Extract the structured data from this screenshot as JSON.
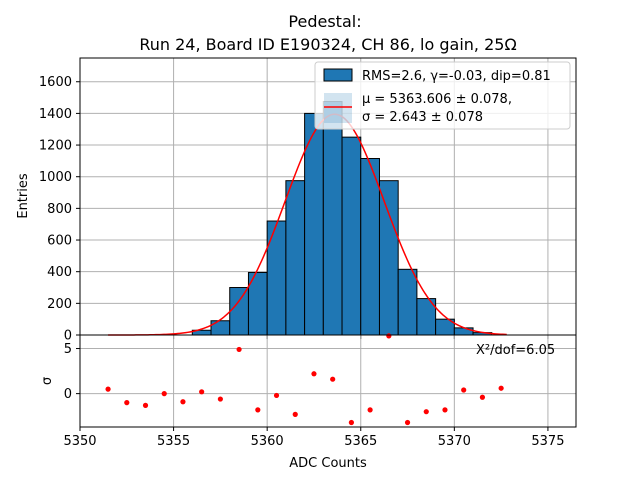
{
  "chart_data": [
    {
      "type": "bar",
      "title": [
        "Pedestal:",
        "Run 24, Board ID E190324, CH 86, lo gain, 25Ω"
      ],
      "xlabel": "ADC Counts",
      "ylabel": "Entries",
      "xlim": [
        5350,
        5376.5
      ],
      "ylim": [
        0,
        1750
      ],
      "grid": true,
      "xticks": [
        5350,
        5355,
        5360,
        5365,
        5370,
        5375
      ],
      "yticks": [
        0,
        200,
        400,
        600,
        800,
        1000,
        1200,
        1400,
        1600
      ],
      "histogram": {
        "bin_width": 1,
        "bin_edges_start": 5351,
        "bin_centers": [
          5351.5,
          5352.5,
          5353.5,
          5354.5,
          5355.5,
          5356.5,
          5357.5,
          5358.5,
          5359.5,
          5360.5,
          5361.5,
          5362.5,
          5363.5,
          5364.5,
          5365.5,
          5366.5,
          5367.5,
          5368.5,
          5369.5,
          5370.5,
          5371.5,
          5372.5
        ],
        "values": [
          0,
          0,
          0,
          0,
          0,
          30,
          90,
          300,
          395,
          720,
          975,
          1400,
          1475,
          1250,
          1115,
          975,
          415,
          230,
          100,
          45,
          15,
          0
        ],
        "color": "#1f77b4",
        "edgecolor": "#000000"
      },
      "fit": {
        "name": "gaussian",
        "color": "#ff0000",
        "mu": 5363.606,
        "sigma": 2.643,
        "amplitude": 1395,
        "x_range": [
          5351.5,
          5372.8
        ]
      },
      "legend": {
        "placement": "upper right",
        "entries": [
          {
            "label": "RMS=2.6, γ=-0.03, dip=0.81",
            "kind": "patch"
          },
          {
            "line1": "μ = 5363.606 ± 0.078,",
            "line2": "σ = 2.643 ± 0.078",
            "kind": "line"
          }
        ]
      }
    },
    {
      "type": "scatter",
      "xlabel": "ADC Counts",
      "ylabel": "σ",
      "xlim": [
        5350,
        5376.5
      ],
      "ylim": [
        -3.7,
        6.5
      ],
      "grid": true,
      "xticks": [
        5350,
        5355,
        5360,
        5365,
        5370,
        5375
      ],
      "yticks": [
        0,
        5
      ],
      "annotation": "X²/dof=6.05",
      "color": "#ff0000",
      "points": [
        {
          "x": 5351.5,
          "y": 0.5
        },
        {
          "x": 5352.5,
          "y": -1.0
        },
        {
          "x": 5353.5,
          "y": -1.3
        },
        {
          "x": 5354.5,
          "y": 0.0
        },
        {
          "x": 5355.5,
          "y": -0.9
        },
        {
          "x": 5356.5,
          "y": 0.2
        },
        {
          "x": 5357.5,
          "y": -0.6
        },
        {
          "x": 5358.5,
          "y": 4.9
        },
        {
          "x": 5359.5,
          "y": -1.8
        },
        {
          "x": 5360.5,
          "y": -0.2
        },
        {
          "x": 5361.5,
          "y": -2.3
        },
        {
          "x": 5362.5,
          "y": 2.2
        },
        {
          "x": 5363.5,
          "y": 1.6
        },
        {
          "x": 5364.5,
          "y": -3.2
        },
        {
          "x": 5365.5,
          "y": -1.8
        },
        {
          "x": 5366.5,
          "y": 6.4
        },
        {
          "x": 5367.5,
          "y": -3.2
        },
        {
          "x": 5368.5,
          "y": -2.0
        },
        {
          "x": 5369.5,
          "y": -1.8
        },
        {
          "x": 5370.5,
          "y": 0.4
        },
        {
          "x": 5371.5,
          "y": -0.4
        },
        {
          "x": 5372.5,
          "y": 0.6
        }
      ]
    }
  ]
}
